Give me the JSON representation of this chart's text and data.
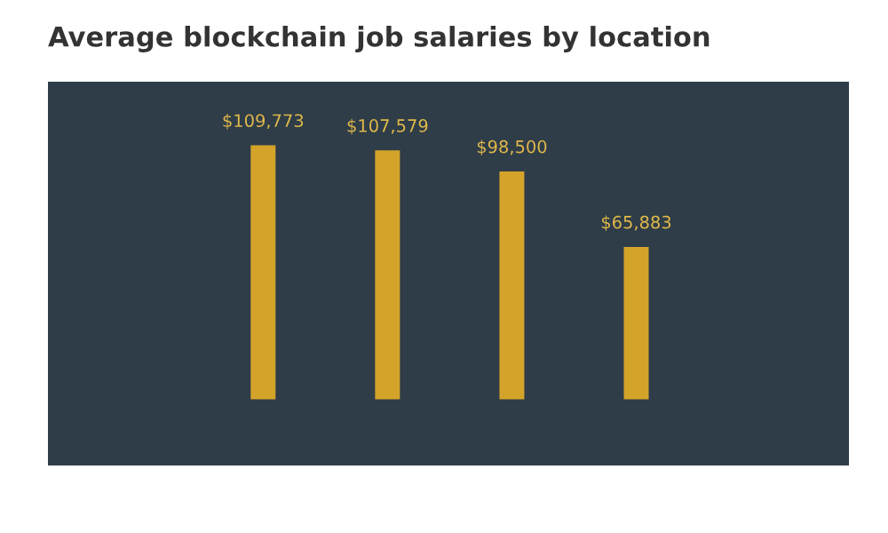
{
  "chart_data": {
    "type": "bar",
    "title": "Average blockchain job salaries by location",
    "categories": [
      null,
      null,
      null,
      null
    ],
    "values": [
      109773,
      107579,
      98500,
      65883
    ],
    "value_labels": [
      "$109,773",
      "$107,579",
      "$98,500",
      "$65,883"
    ],
    "color": "#d4a32a",
    "grid": false,
    "legend": false
  }
}
